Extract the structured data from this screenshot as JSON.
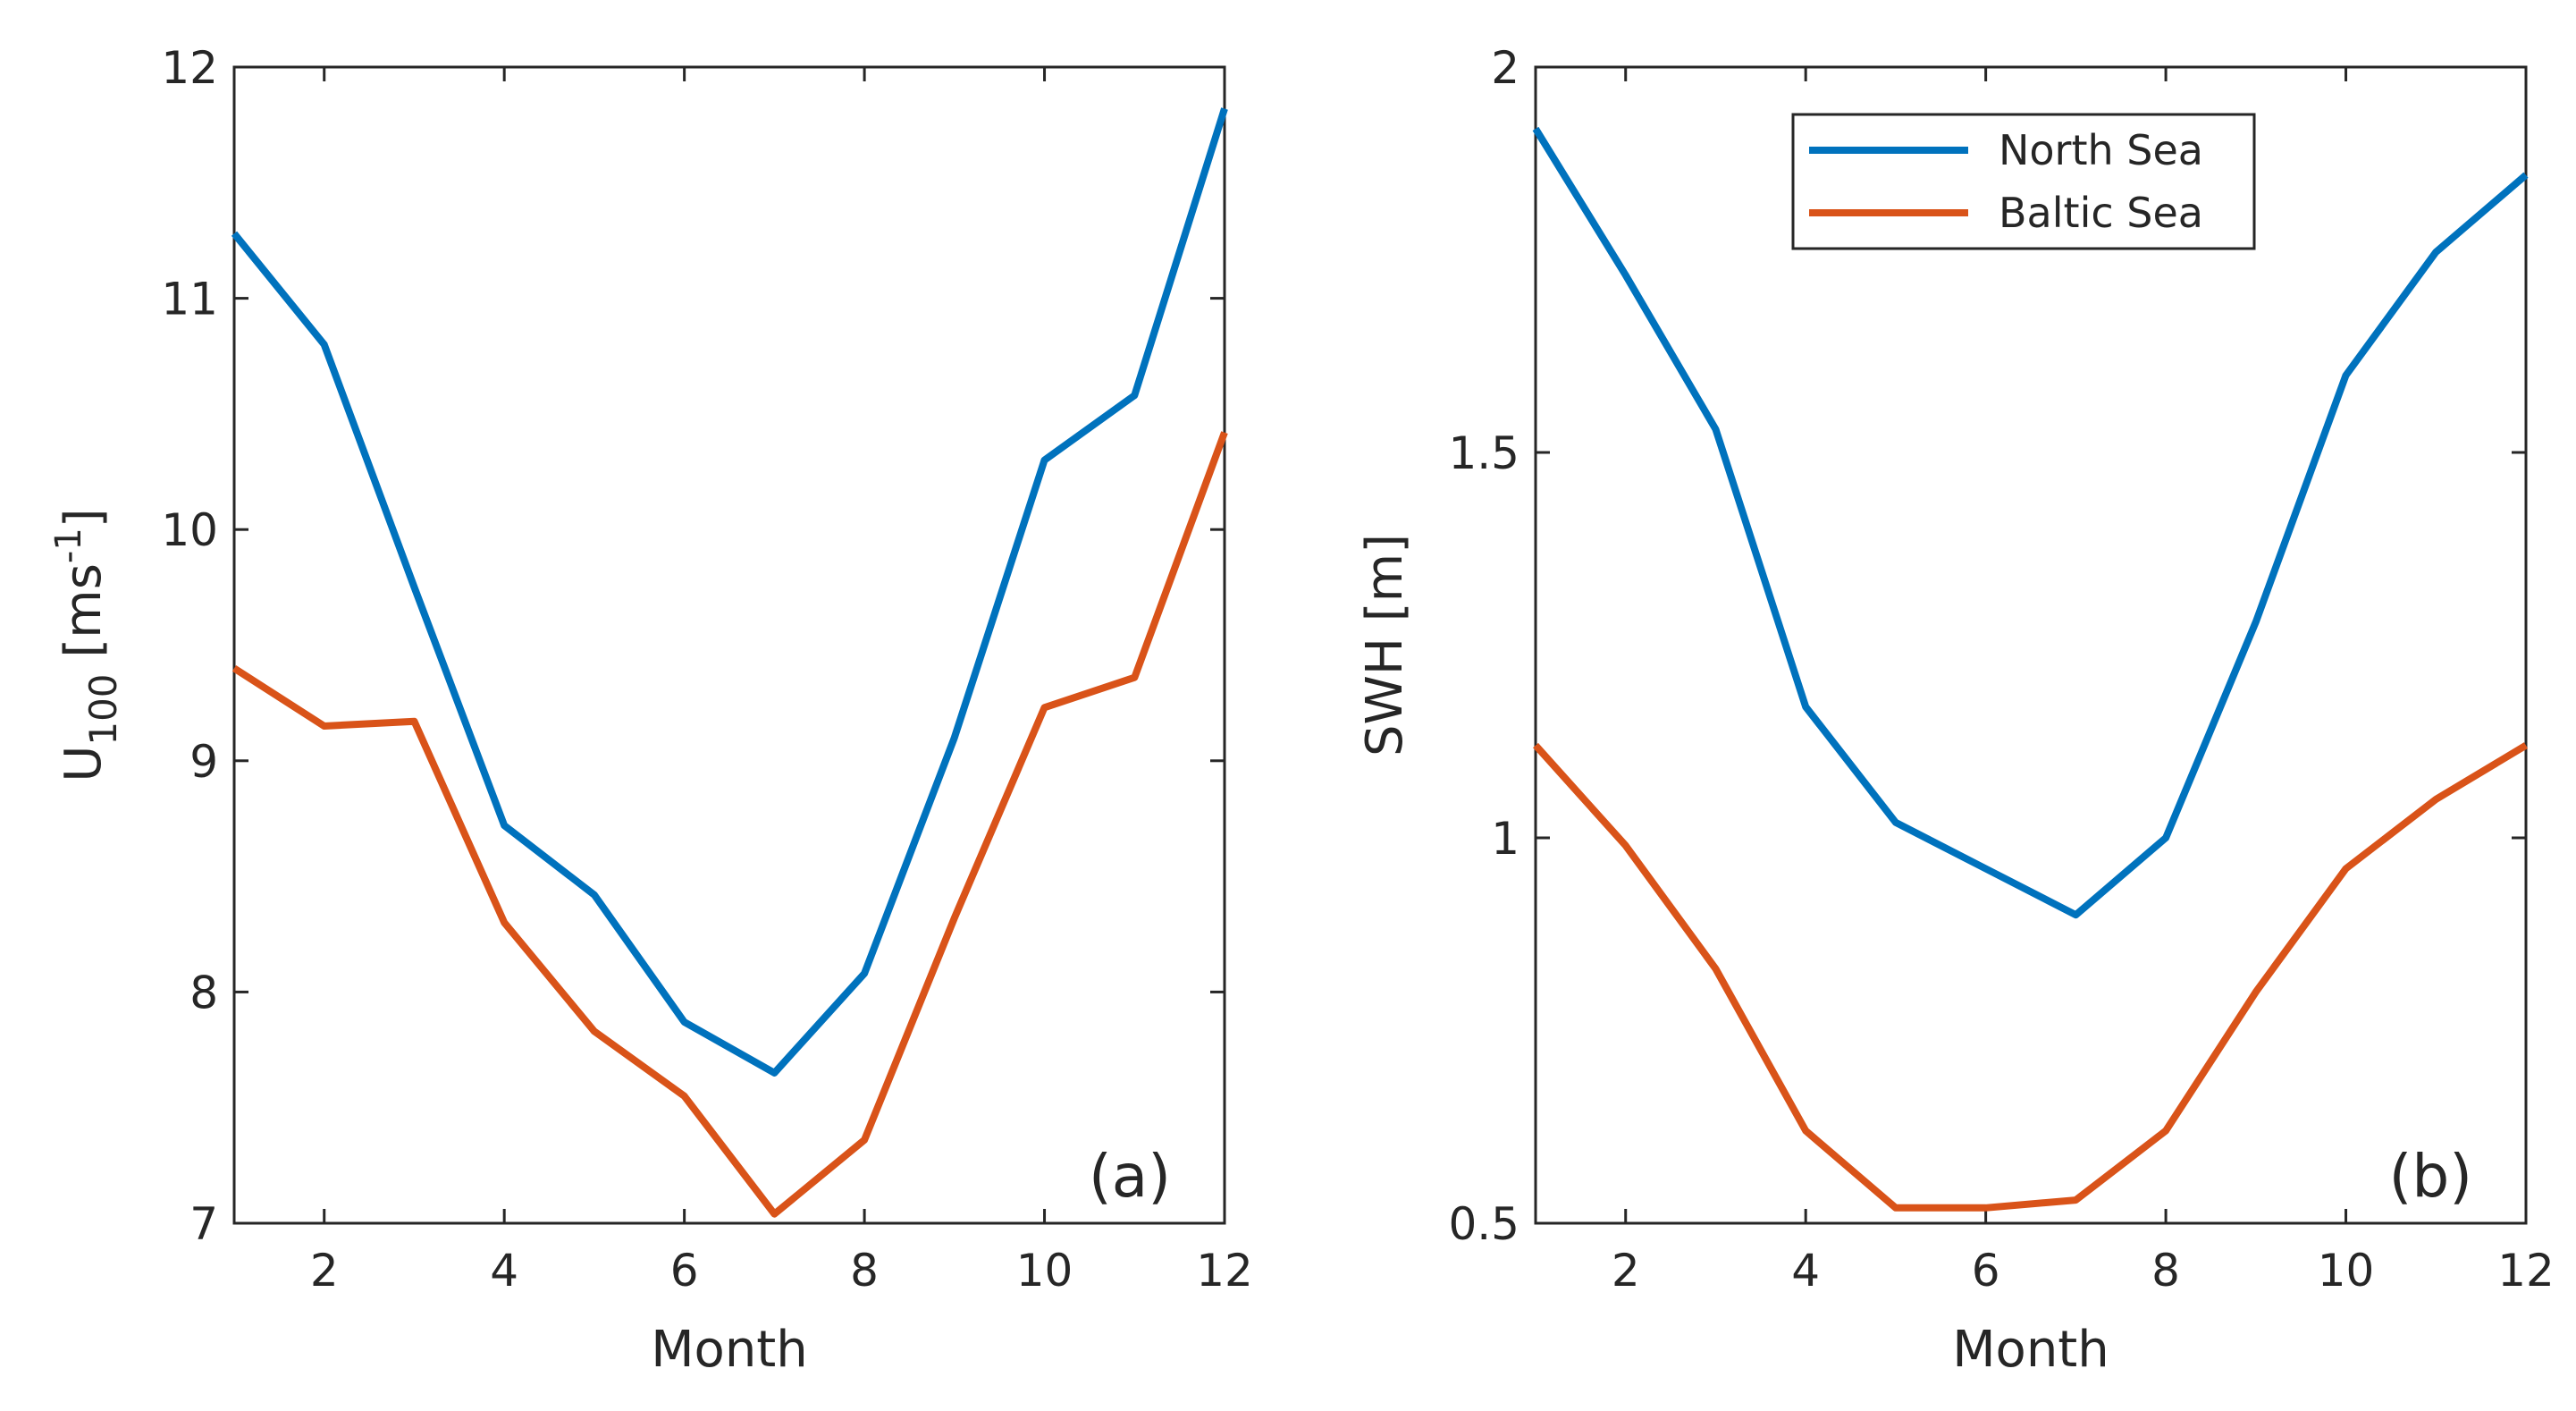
{
  "chart_data": [
    {
      "type": "line",
      "panel_label": "(a)",
      "xlabel": "Month",
      "ylabel": {
        "base": "U",
        "sub": "100",
        "unit_open": " [ms",
        "sup": "-1",
        "unit_close": "]"
      },
      "xlim": [
        1,
        12
      ],
      "ylim": [
        7,
        12
      ],
      "xticks": [
        2,
        4,
        6,
        8,
        10,
        12
      ],
      "yticks": [
        7,
        8,
        9,
        10,
        11,
        12
      ],
      "x": [
        1,
        2,
        3,
        4,
        5,
        6,
        7,
        8,
        9,
        10,
        11,
        12
      ],
      "series": [
        {
          "name": "North Sea",
          "color": "#0072BD",
          "values": [
            11.28,
            10.8,
            9.75,
            8.72,
            8.42,
            7.87,
            7.65,
            8.08,
            9.1,
            10.3,
            10.58,
            11.82
          ]
        },
        {
          "name": "Baltic Sea",
          "color": "#D95319",
          "values": [
            9.4,
            9.15,
            9.17,
            8.3,
            7.83,
            7.55,
            7.04,
            7.36,
            8.32,
            9.23,
            9.36,
            10.42
          ]
        }
      ],
      "legend": false
    },
    {
      "type": "line",
      "panel_label": "(b)",
      "xlabel": "Month",
      "ylabel": {
        "base": "SWH [m]"
      },
      "xlim": [
        1,
        12
      ],
      "ylim": [
        0.5,
        2
      ],
      "xticks": [
        2,
        4,
        6,
        8,
        10,
        12
      ],
      "yticks": [
        0.5,
        1,
        1.5,
        2
      ],
      "ytick_labels": [
        "0.5",
        "1",
        "1.5",
        "2"
      ],
      "x": [
        1,
        2,
        3,
        4,
        5,
        6,
        7,
        8,
        9,
        10,
        11,
        12
      ],
      "series": [
        {
          "name": "North Sea",
          "color": "#0072BD",
          "values": [
            1.92,
            1.73,
            1.53,
            1.17,
            1.02,
            0.96,
            0.9,
            1.0,
            1.28,
            1.6,
            1.76,
            1.86
          ]
        },
        {
          "name": "Baltic Sea",
          "color": "#D95319",
          "values": [
            1.12,
            0.99,
            0.83,
            0.62,
            0.52,
            0.52,
            0.53,
            0.62,
            0.8,
            0.96,
            1.05,
            1.12
          ]
        }
      ],
      "legend": true,
      "legend_position": "top-right"
    }
  ]
}
